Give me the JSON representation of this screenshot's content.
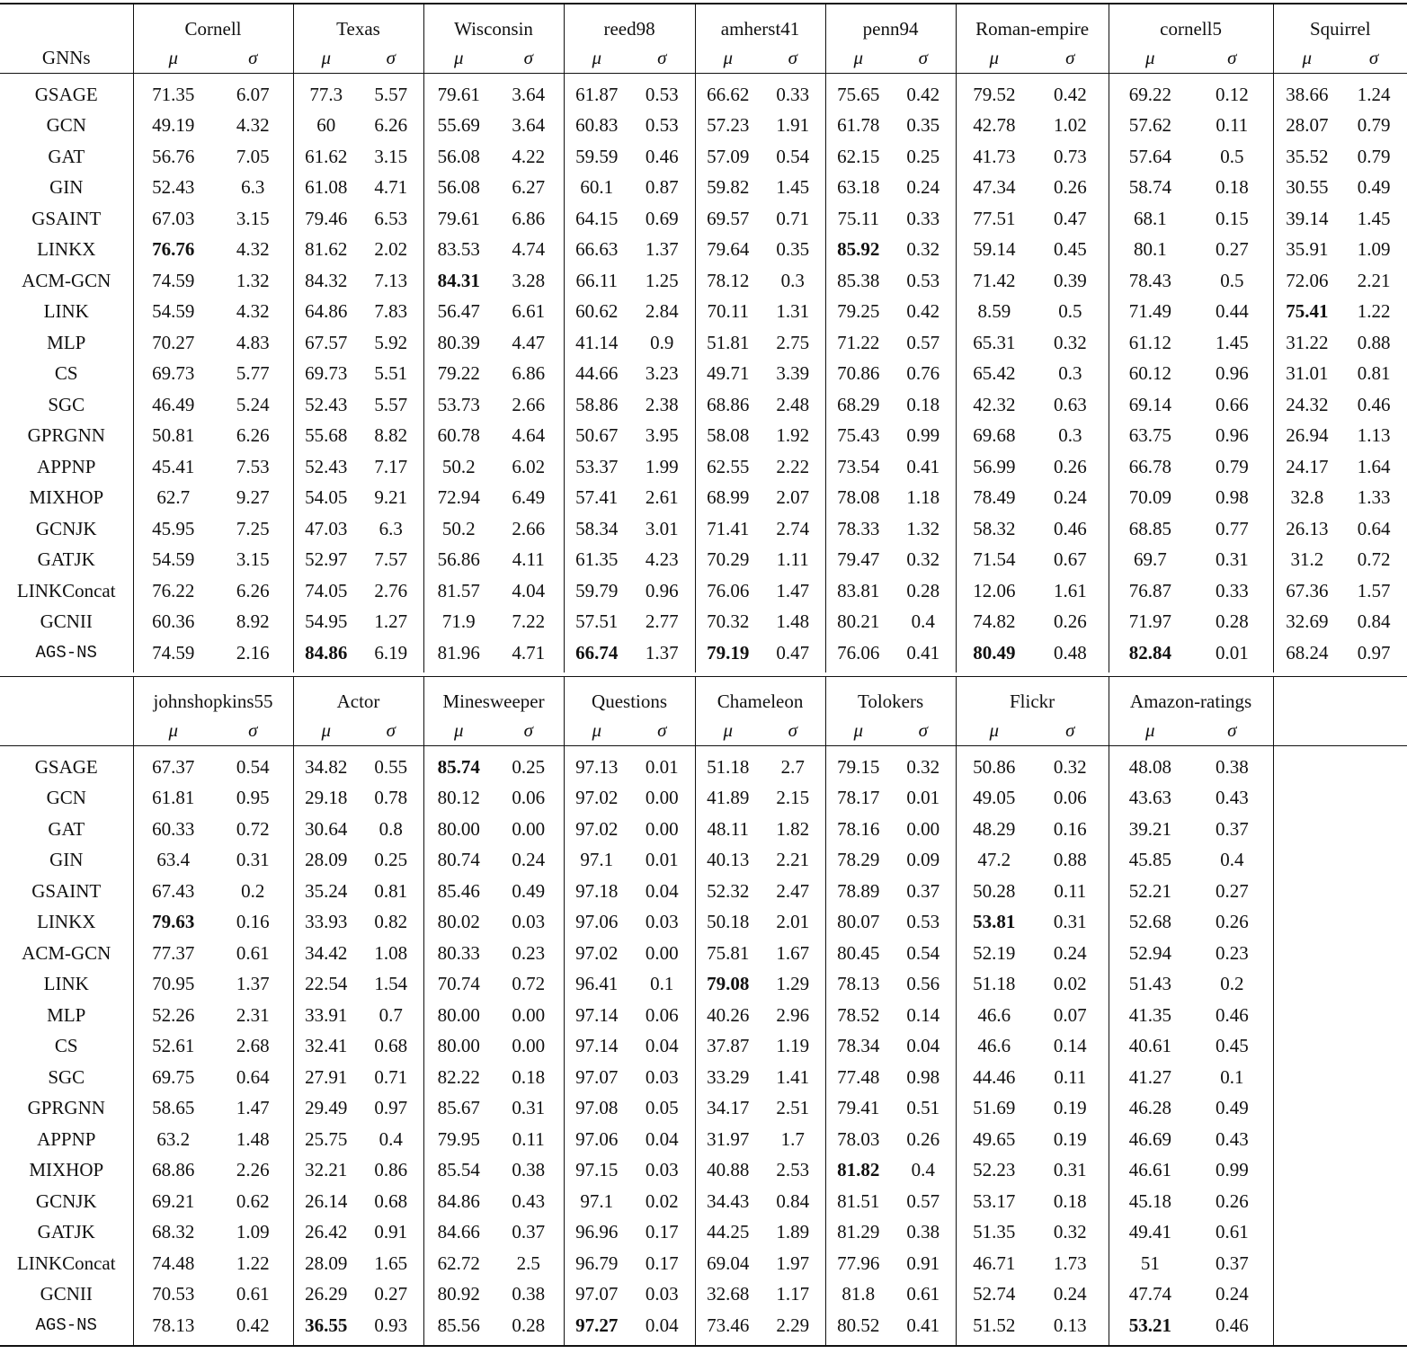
{
  "row_header": "GNNs",
  "mu_label": "μ",
  "sigma_label": "σ",
  "blocks": [
    {
      "datasets": [
        "Cornell",
        "Texas",
        "Wisconsin",
        "reed98",
        "amherst41",
        "penn94",
        "Roman-empire",
        "cornell5",
        "Squirrel"
      ],
      "rows": [
        {
          "model": "GSAGE",
          "mu": [
            "71.35",
            "77.3",
            "79.61",
            "61.87",
            "66.62",
            "75.65",
            "79.52",
            "69.22",
            "38.66"
          ],
          "sigma": [
            "6.07",
            "5.57",
            "3.64",
            "0.53",
            "0.33",
            "0.42",
            "0.42",
            "0.12",
            "1.24"
          ],
          "best": []
        },
        {
          "model": "GCN",
          "mu": [
            "49.19",
            "60",
            "55.69",
            "60.83",
            "57.23",
            "61.78",
            "42.78",
            "57.62",
            "28.07"
          ],
          "sigma": [
            "4.32",
            "6.26",
            "3.64",
            "0.53",
            "1.91",
            "0.35",
            "1.02",
            "0.11",
            "0.79"
          ],
          "best": []
        },
        {
          "model": "GAT",
          "mu": [
            "56.76",
            "61.62",
            "56.08",
            "59.59",
            "57.09",
            "62.15",
            "41.73",
            "57.64",
            "35.52"
          ],
          "sigma": [
            "7.05",
            "3.15",
            "4.22",
            "0.46",
            "0.54",
            "0.25",
            "0.73",
            "0.5",
            "0.79"
          ],
          "best": []
        },
        {
          "model": "GIN",
          "mu": [
            "52.43",
            "61.08",
            "56.08",
            "60.1",
            "59.82",
            "63.18",
            "47.34",
            "58.74",
            "30.55"
          ],
          "sigma": [
            "6.3",
            "4.71",
            "6.27",
            "0.87",
            "1.45",
            "0.24",
            "0.26",
            "0.18",
            "0.49"
          ],
          "best": []
        },
        {
          "model": "GSAINT",
          "mu": [
            "67.03",
            "79.46",
            "79.61",
            "64.15",
            "69.57",
            "75.11",
            "77.51",
            "68.1",
            "39.14"
          ],
          "sigma": [
            "3.15",
            "6.53",
            "6.86",
            "0.69",
            "0.71",
            "0.33",
            "0.47",
            "0.15",
            "1.45"
          ],
          "best": []
        },
        {
          "model": "LINKX",
          "mu": [
            "76.76",
            "81.62",
            "83.53",
            "66.63",
            "79.64",
            "85.92",
            "59.14",
            "80.1",
            "35.91"
          ],
          "sigma": [
            "4.32",
            "2.02",
            "4.74",
            "1.37",
            "0.35",
            "0.32",
            "0.45",
            "0.27",
            "1.09"
          ],
          "best": [
            0,
            5
          ]
        },
        {
          "model": "ACM-GCN",
          "mu": [
            "74.59",
            "84.32",
            "84.31",
            "66.11",
            "78.12",
            "85.38",
            "71.42",
            "78.43",
            "72.06"
          ],
          "sigma": [
            "1.32",
            "7.13",
            "3.28",
            "1.25",
            "0.3",
            "0.53",
            "0.39",
            "0.5",
            "2.21"
          ],
          "best": [
            2
          ]
        },
        {
          "model": "LINK",
          "mu": [
            "54.59",
            "64.86",
            "56.47",
            "60.62",
            "70.11",
            "79.25",
            "8.59",
            "71.49",
            "75.41"
          ],
          "sigma": [
            "4.32",
            "7.83",
            "6.61",
            "2.84",
            "1.31",
            "0.42",
            "0.5",
            "0.44",
            "1.22"
          ],
          "best": [
            8
          ]
        },
        {
          "model": "MLP",
          "mu": [
            "70.27",
            "67.57",
            "80.39",
            "41.14",
            "51.81",
            "71.22",
            "65.31",
            "61.12",
            "31.22"
          ],
          "sigma": [
            "4.83",
            "5.92",
            "4.47",
            "0.9",
            "2.75",
            "0.57",
            "0.32",
            "1.45",
            "0.88"
          ],
          "best": []
        },
        {
          "model": "CS",
          "mu": [
            "69.73",
            "69.73",
            "79.22",
            "44.66",
            "49.71",
            "70.86",
            "65.42",
            "60.12",
            "31.01"
          ],
          "sigma": [
            "5.77",
            "5.51",
            "6.86",
            "3.23",
            "3.39",
            "0.76",
            "0.3",
            "0.96",
            "0.81"
          ],
          "best": []
        },
        {
          "model": "SGC",
          "mu": [
            "46.49",
            "52.43",
            "53.73",
            "58.86",
            "68.86",
            "68.29",
            "42.32",
            "69.14",
            "24.32"
          ],
          "sigma": [
            "5.24",
            "5.57",
            "2.66",
            "2.38",
            "2.48",
            "0.18",
            "0.63",
            "0.66",
            "0.46"
          ],
          "best": []
        },
        {
          "model": "GPRGNN",
          "mu": [
            "50.81",
            "55.68",
            "60.78",
            "50.67",
            "58.08",
            "75.43",
            "69.68",
            "63.75",
            "26.94"
          ],
          "sigma": [
            "6.26",
            "8.82",
            "4.64",
            "3.95",
            "1.92",
            "0.99",
            "0.3",
            "0.96",
            "1.13"
          ],
          "best": []
        },
        {
          "model": "APPNP",
          "mu": [
            "45.41",
            "52.43",
            "50.2",
            "53.37",
            "62.55",
            "73.54",
            "56.99",
            "66.78",
            "24.17"
          ],
          "sigma": [
            "7.53",
            "7.17",
            "6.02",
            "1.99",
            "2.22",
            "0.41",
            "0.26",
            "0.79",
            "1.64"
          ],
          "best": []
        },
        {
          "model": "MIXHOP",
          "mu": [
            "62.7",
            "54.05",
            "72.94",
            "57.41",
            "68.99",
            "78.08",
            "78.49",
            "70.09",
            "32.8"
          ],
          "sigma": [
            "9.27",
            "9.21",
            "6.49",
            "2.61",
            "2.07",
            "1.18",
            "0.24",
            "0.98",
            "1.33"
          ],
          "best": []
        },
        {
          "model": "GCNJK",
          "mu": [
            "45.95",
            "47.03",
            "50.2",
            "58.34",
            "71.41",
            "78.33",
            "58.32",
            "68.85",
            "26.13"
          ],
          "sigma": [
            "7.25",
            "6.3",
            "2.66",
            "3.01",
            "2.74",
            "1.32",
            "0.46",
            "0.77",
            "0.64"
          ],
          "best": []
        },
        {
          "model": "GATJK",
          "mu": [
            "54.59",
            "52.97",
            "56.86",
            "61.35",
            "70.29",
            "79.47",
            "71.54",
            "69.7",
            "31.2"
          ],
          "sigma": [
            "3.15",
            "7.57",
            "4.11",
            "4.23",
            "1.11",
            "0.32",
            "0.67",
            "0.31",
            "0.72"
          ],
          "best": []
        },
        {
          "model": "LINKConcat",
          "mu": [
            "76.22",
            "74.05",
            "81.57",
            "59.79",
            "76.06",
            "83.81",
            "12.06",
            "76.87",
            "67.36"
          ],
          "sigma": [
            "6.26",
            "2.76",
            "4.04",
            "0.96",
            "1.47",
            "0.28",
            "1.61",
            "0.33",
            "1.57"
          ],
          "best": []
        },
        {
          "model": "GCNII",
          "mu": [
            "60.36",
            "54.95",
            "71.9",
            "57.51",
            "70.32",
            "80.21",
            "74.82",
            "71.97",
            "32.69"
          ],
          "sigma": [
            "8.92",
            "1.27",
            "7.22",
            "2.77",
            "1.48",
            "0.4",
            "0.26",
            "0.28",
            "0.84"
          ],
          "best": []
        },
        {
          "model": "AGS-NS",
          "mono": true,
          "mu": [
            "74.59",
            "84.86",
            "81.96",
            "66.74",
            "79.19",
            "76.06",
            "80.49",
            "82.84",
            "68.24"
          ],
          "sigma": [
            "2.16",
            "6.19",
            "4.71",
            "1.37",
            "0.47",
            "0.41",
            "0.48",
            "0.01",
            "0.97"
          ],
          "best": [
            1,
            3,
            4,
            6,
            7
          ]
        }
      ]
    },
    {
      "datasets": [
        "johnshopkins55",
        "Actor",
        "Minesweeper",
        "Questions",
        "Chameleon",
        "Tolokers",
        "Flickr",
        "Amazon-ratings"
      ],
      "rows": [
        {
          "model": "GSAGE",
          "mu": [
            "67.37",
            "34.82",
            "85.74",
            "97.13",
            "51.18",
            "79.15",
            "50.86",
            "48.08"
          ],
          "sigma": [
            "0.54",
            "0.55",
            "0.25",
            "0.01",
            "2.7",
            "0.32",
            "0.32",
            "0.38"
          ],
          "best": [
            2
          ]
        },
        {
          "model": "GCN",
          "mu": [
            "61.81",
            "29.18",
            "80.12",
            "97.02",
            "41.89",
            "78.17",
            "49.05",
            "43.63"
          ],
          "sigma": [
            "0.95",
            "0.78",
            "0.06",
            "0.00",
            "2.15",
            "0.01",
            "0.06",
            "0.43"
          ],
          "best": []
        },
        {
          "model": "GAT",
          "mu": [
            "60.33",
            "30.64",
            "80.00",
            "97.02",
            "48.11",
            "78.16",
            "48.29",
            "39.21"
          ],
          "sigma": [
            "0.72",
            "0.8",
            "0.00",
            "0.00",
            "1.82",
            "0.00",
            "0.16",
            "0.37"
          ],
          "best": []
        },
        {
          "model": "GIN",
          "mu": [
            "63.4",
            "28.09",
            "80.74",
            "97.1",
            "40.13",
            "78.29",
            "47.2",
            "45.85"
          ],
          "sigma": [
            "0.31",
            "0.25",
            "0.24",
            "0.01",
            "2.21",
            "0.09",
            "0.88",
            "0.4"
          ],
          "best": []
        },
        {
          "model": "GSAINT",
          "mu": [
            "67.43",
            "35.24",
            "85.46",
            "97.18",
            "52.32",
            "78.89",
            "50.28",
            "52.21"
          ],
          "sigma": [
            "0.2",
            "0.81",
            "0.49",
            "0.04",
            "2.47",
            "0.37",
            "0.11",
            "0.27"
          ],
          "best": []
        },
        {
          "model": "LINKX",
          "mu": [
            "79.63",
            "33.93",
            "80.02",
            "97.06",
            "50.18",
            "80.07",
            "53.81",
            "52.68"
          ],
          "sigma": [
            "0.16",
            "0.82",
            "0.03",
            "0.03",
            "2.01",
            "0.53",
            "0.31",
            "0.26"
          ],
          "best": [
            0,
            6
          ]
        },
        {
          "model": "ACM-GCN",
          "mu": [
            "77.37",
            "34.42",
            "80.33",
            "97.02",
            "75.81",
            "80.45",
            "52.19",
            "52.94"
          ],
          "sigma": [
            "0.61",
            "1.08",
            "0.23",
            "0.00",
            "1.67",
            "0.54",
            "0.24",
            "0.23"
          ],
          "best": []
        },
        {
          "model": "LINK",
          "mu": [
            "70.95",
            "22.54",
            "70.74",
            "96.41",
            "79.08",
            "78.13",
            "51.18",
            "51.43"
          ],
          "sigma": [
            "1.37",
            "1.54",
            "0.72",
            "0.1",
            "1.29",
            "0.56",
            "0.02",
            "0.2"
          ],
          "best": [
            4
          ]
        },
        {
          "model": "MLP",
          "mu": [
            "52.26",
            "33.91",
            "80.00",
            "97.14",
            "40.26",
            "78.52",
            "46.6",
            "41.35"
          ],
          "sigma": [
            "2.31",
            "0.7",
            "0.00",
            "0.06",
            "2.96",
            "0.14",
            "0.07",
            "0.46"
          ],
          "best": []
        },
        {
          "model": "CS",
          "mu": [
            "52.61",
            "32.41",
            "80.00",
            "97.14",
            "37.87",
            "78.34",
            "46.6",
            "40.61"
          ],
          "sigma": [
            "2.68",
            "0.68",
            "0.00",
            "0.04",
            "1.19",
            "0.04",
            "0.14",
            "0.45"
          ],
          "best": []
        },
        {
          "model": "SGC",
          "mu": [
            "69.75",
            "27.91",
            "82.22",
            "97.07",
            "33.29",
            "77.48",
            "44.46",
            "41.27"
          ],
          "sigma": [
            "0.64",
            "0.71",
            "0.18",
            "0.03",
            "1.41",
            "0.98",
            "0.11",
            "0.1"
          ],
          "best": []
        },
        {
          "model": "GPRGNN",
          "mu": [
            "58.65",
            "29.49",
            "85.67",
            "97.08",
            "34.17",
            "79.41",
            "51.69",
            "46.28"
          ],
          "sigma": [
            "1.47",
            "0.97",
            "0.31",
            "0.05",
            "2.51",
            "0.51",
            "0.19",
            "0.49"
          ],
          "best": []
        },
        {
          "model": "APPNP",
          "mu": [
            "63.2",
            "25.75",
            "79.95",
            "97.06",
            "31.97",
            "78.03",
            "49.65",
            "46.69"
          ],
          "sigma": [
            "1.48",
            "0.4",
            "0.11",
            "0.04",
            "1.7",
            "0.26",
            "0.19",
            "0.43"
          ],
          "best": []
        },
        {
          "model": "MIXHOP",
          "mu": [
            "68.86",
            "32.21",
            "85.54",
            "97.15",
            "40.88",
            "81.82",
            "52.23",
            "46.61"
          ],
          "sigma": [
            "2.26",
            "0.86",
            "0.38",
            "0.03",
            "2.53",
            "0.4",
            "0.31",
            "0.99"
          ],
          "best": [
            5
          ]
        },
        {
          "model": "GCNJK",
          "mu": [
            "69.21",
            "26.14",
            "84.86",
            "97.1",
            "34.43",
            "81.51",
            "53.17",
            "45.18"
          ],
          "sigma": [
            "0.62",
            "0.68",
            "0.43",
            "0.02",
            "0.84",
            "0.57",
            "0.18",
            "0.26"
          ],
          "best": []
        },
        {
          "model": "GATJK",
          "mu": [
            "68.32",
            "26.42",
            "84.66",
            "96.96",
            "44.25",
            "81.29",
            "51.35",
            "49.41"
          ],
          "sigma": [
            "1.09",
            "0.91",
            "0.37",
            "0.17",
            "1.89",
            "0.38",
            "0.32",
            "0.61"
          ],
          "best": []
        },
        {
          "model": "LINKConcat",
          "mu": [
            "74.48",
            "28.09",
            "62.72",
            "96.79",
            "69.04",
            "77.96",
            "46.71",
            "51"
          ],
          "sigma": [
            "1.22",
            "1.65",
            "2.5",
            "0.17",
            "1.97",
            "0.91",
            "1.73",
            "0.37"
          ],
          "best": []
        },
        {
          "model": "GCNII",
          "mu": [
            "70.53",
            "26.29",
            "80.92",
            "97.07",
            "32.68",
            "81.8",
            "52.74",
            "47.74"
          ],
          "sigma": [
            "0.61",
            "0.27",
            "0.38",
            "0.03",
            "1.17",
            "0.61",
            "0.24",
            "0.24"
          ],
          "best": []
        },
        {
          "model": "AGS-NS",
          "mono": true,
          "mu": [
            "78.13",
            "36.55",
            "85.56",
            "97.27",
            "73.46",
            "80.52",
            "51.52",
            "53.21"
          ],
          "sigma": [
            "0.42",
            "0.93",
            "0.28",
            "0.04",
            "2.29",
            "0.41",
            "0.13",
            "0.46"
          ],
          "best": [
            1,
            3,
            7
          ]
        }
      ]
    }
  ]
}
